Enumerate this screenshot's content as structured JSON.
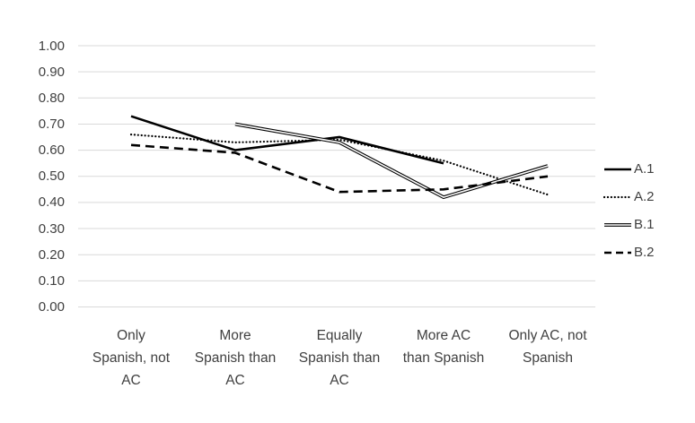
{
  "chart_data": {
    "type": "line",
    "title": "",
    "categories": [
      "Only Spanish, not AC",
      "More Spanish than AC",
      "Equally Spanish than AC",
      "More AC than Spanish",
      "Only AC, not Spanish"
    ],
    "categories_wrapped": [
      [
        "Only",
        "Spanish, not",
        "AC"
      ],
      [
        "More",
        "Spanish than",
        "AC"
      ],
      [
        "Equally",
        "Spanish than",
        "AC"
      ],
      [
        "More AC",
        "than Spanish"
      ],
      [
        "Only AC, not",
        "Spanish"
      ]
    ],
    "series": [
      {
        "name": "A.1",
        "line_style": "solid-thick",
        "values": [
          0.73,
          0.6,
          0.65,
          0.55,
          null
        ]
      },
      {
        "name": "A.2",
        "line_style": "dotted",
        "values": [
          0.66,
          0.63,
          0.64,
          0.56,
          0.43
        ]
      },
      {
        "name": "B.1",
        "line_style": "double",
        "values": [
          null,
          0.7,
          0.63,
          0.42,
          0.54
        ]
      },
      {
        "name": "B.2",
        "line_style": "dashed",
        "values": [
          0.62,
          0.59,
          0.44,
          0.45,
          0.5
        ]
      }
    ],
    "y_axis": {
      "min": 0,
      "max": 1,
      "step": 0.1,
      "tick_labels": [
        "0.00",
        "0.10",
        "0.20",
        "0.30",
        "0.40",
        "0.50",
        "0.60",
        "0.70",
        "0.80",
        "0.90",
        "1.00"
      ]
    },
    "legend": {
      "position": "right",
      "entries": [
        "A.1",
        "A.2",
        "B.1",
        "B.2"
      ]
    },
    "grid": true,
    "colors": {
      "line": "#000000",
      "gridline": "#d9d9d9",
      "text": "#404040",
      "background": "#ffffff"
    }
  }
}
